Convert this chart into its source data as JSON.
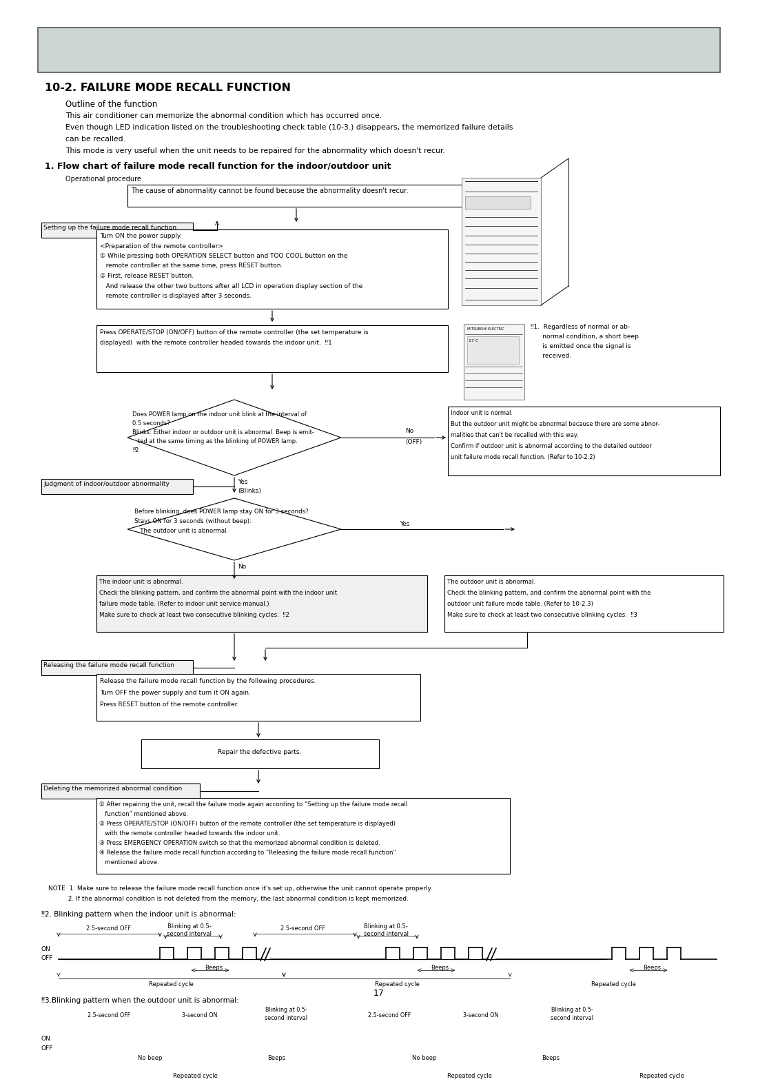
{
  "title_header_bg": "#cdd5d5",
  "page_bg": "#ffffff",
  "section_title": "10-2. FAILURE MODE RECALL FUNCTION",
  "outline_title": "Outline of the function",
  "outline_text1": "This air conditioner can memorize the abnormal condition which has occurred once.",
  "outline_text2a": "Even though LED indication listed on the troubleshooting check table (10-3.) disappears, the memorized failure details",
  "outline_text2b": "can be recalled.",
  "outline_text3": "This mode is very useful when the unit needs to be repaired for the abnormality which doesn't recur.",
  "flowchart_title": "1. Flow chart of failure mode recall function for the indoor/outdoor unit",
  "op_procedure": "Operational procedure",
  "box1": "The cause of abnormality cannot be found because the abnormality doesn't recur.",
  "label_setup": "Setting up the failure mode recall function",
  "box2_lines": [
    "Turn ON the power supply.",
    "<Preparation of the remote controller>",
    "① While pressing both OPERATION SELECT button and TOO COOL button on the",
    "   remote controller at the same time, press RESET button.",
    "② First, release RESET button.",
    "   And release the other two buttons after all LCD in operation display section of the",
    "   remote controller is displayed after 3 seconds."
  ],
  "box3_lines": [
    "Press OPERATE/STOP (ON/OFF) button of the remote controller (the set temperature is",
    "displayed)  with the remote controller headed towards the indoor unit.  ‼1"
  ],
  "note1_lines": [
    "‼1.  Regardless of normal or ab-",
    "      normal condition, a short beep",
    "      is emitted once the signal is",
    "      received."
  ],
  "diamond1_lines": [
    "Does POWER lamp on the indoor unit blink at the interval of",
    "0.5 seconds?",
    "Blinks: Either indoor or outdoor unit is abnormal. Beep is emit-",
    "   ted at the same timing as the blinking of POWER lamp.",
    "‼2"
  ],
  "no_label": "No\n(OFF)",
  "indoor_normal_lines": [
    "Indoor unit is normal.",
    "But the outdoor unit might be abnormal because there are some abnor-",
    "malities that can't be recalled with this way.",
    "Confirm if outdoor unit is abnormal according to the detailed outdoor",
    "unit failure mode recall function. (Refer to 10-2.2)"
  ],
  "yes_blinks": "Yes\n(Blinks)",
  "label_judgment": "Judgment of indoor/outdoor abnormality",
  "diamond2_lines": [
    "Before blinking, does POWER lamp stay ON for 3 seconds?",
    "Stays ON for 3 seconds (without beep):",
    "   The outdoor unit is abnormal."
  ],
  "yes_label": "Yes",
  "no_label2": "No",
  "indoor_abnormal_lines": [
    "The indoor unit is abnormal.",
    "Check the blinking pattern, and confirm the abnormal point with the indoor unit",
    "failure mode table. (Refer to indoor unit service manual.)",
    "Make sure to check at least two consecutive blinking cycles.  ‼2"
  ],
  "outdoor_abnormal_lines": [
    "The outdoor unit is abnormal.",
    "Check the blinking pattern, and confirm the abnormal point with the",
    "outdoor unit failure mode table. (Refer to 10-2.3)",
    "Make sure to check at least two consecutive blinking cycles.  ‼3"
  ],
  "label_releasing": "Releasing the failure mode recall function",
  "box_release_lines": [
    "Release the failure mode recall function by the following procedures.",
    "Turn OFF the power supply and turn it ON again.",
    "Press RESET button of the remote controller."
  ],
  "box_repair": "Repair the defective parts.",
  "label_deleting": "Deleting the memorized abnormal condition",
  "box_delete_lines": [
    "① After repairing the unit, recall the failure mode again according to \"Setting up the failure mode recall",
    "   function\" mentioned above.",
    "② Press OPERATE/STOP (ON/OFF) button of the remote controller (the set temperature is displayed)",
    "   with the remote controller headed towards the indoor unit.",
    "③ Press EMERGENCY OPERATION switch so that the memorized abnormal condition is deleted.",
    "④ Release the failure mode recall function according to \"Releasing the failure mode recall function\"",
    "   mentioned above."
  ],
  "note_line1": "NOTE  1. Make sure to release the failure mode recall function once it's set up, otherwise the unit cannot operate properly.",
  "note_line2": "          2. If the abnormal condition is not deleted from the memory, the last abnormal condition is kept memorized.",
  "note2_title": "‼2. Blinking pattern when the indoor unit is abnormal:",
  "note3_title": "‼3.Blinking pattern when the outdoor unit is abnormal:",
  "page_number": "17"
}
